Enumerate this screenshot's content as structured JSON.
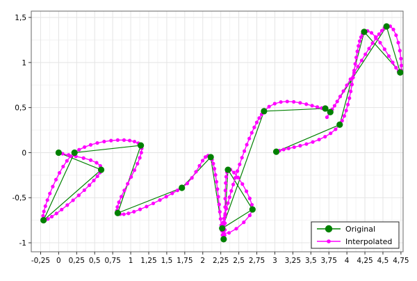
{
  "chart_data": {
    "type": "line",
    "title": "",
    "xlabel": "",
    "ylabel": "",
    "xlim": [
      -0.38,
      4.78
    ],
    "ylim": [
      -1.1,
      1.57
    ],
    "grid": true,
    "legend_position": "bottom-right",
    "x_tick_values": [
      -0.25,
      0,
      0.25,
      0.5,
      0.75,
      1,
      1.25,
      1.5,
      1.75,
      2,
      2.25,
      2.5,
      2.75,
      3,
      3.25,
      3.5,
      3.75,
      4,
      4.25,
      4.5,
      4.75
    ],
    "x_tick_labels": [
      "-0,25",
      "0",
      "0,25",
      "0,5",
      "0,75",
      "1",
      "1,25",
      "1,5",
      "1,75",
      "2",
      "2,25",
      "2,5",
      "2,75",
      "3",
      "3,25",
      "3,5",
      "3,75",
      "4",
      "4,25",
      "4,5",
      "4,75"
    ],
    "y_tick_values": [
      -1,
      -0.5,
      0,
      0.5,
      1,
      1.5
    ],
    "y_tick_labels": [
      "-1",
      "-0,5",
      "0",
      "0,5",
      "1",
      "1,5"
    ],
    "series": [
      {
        "name": "Original",
        "color": "#008000",
        "marker": "circle",
        "points": [
          [
            0.0,
            0.0
          ],
          [
            0.59,
            -0.19
          ],
          [
            -0.21,
            -0.75
          ],
          [
            0.22,
            0.0
          ],
          [
            1.14,
            0.08
          ],
          [
            0.82,
            -0.67
          ],
          [
            1.71,
            -0.39
          ],
          [
            2.11,
            -0.05
          ],
          [
            2.29,
            -0.96
          ],
          [
            2.35,
            -0.19
          ],
          [
            2.69,
            -0.63
          ],
          [
            2.27,
            -0.84
          ],
          [
            2.85,
            0.46
          ],
          [
            3.7,
            0.49
          ],
          [
            3.77,
            0.45
          ],
          [
            4.55,
            1.4
          ],
          [
            4.74,
            0.89
          ],
          [
            4.24,
            1.34
          ],
          [
            3.9,
            0.31
          ],
          [
            3.02,
            0.01
          ]
        ]
      },
      {
        "name": "Interpolated",
        "color": "#ff00ff",
        "marker": "small-circle"
      }
    ]
  },
  "legend": {
    "original_label": "Original",
    "interpolated_label": "Interpolated"
  }
}
